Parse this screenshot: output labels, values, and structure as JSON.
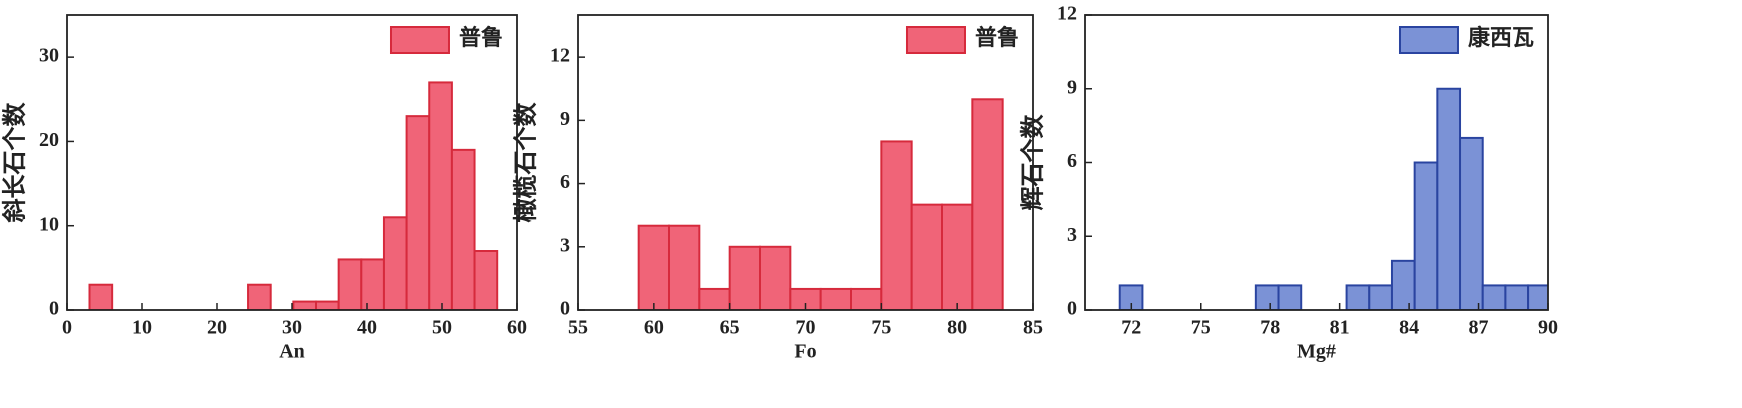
{
  "chart_data": [
    {
      "type": "histogram",
      "xlabel": "An",
      "ylabel": "斜长石个数",
      "legend": "upper right",
      "series_name": "普鲁",
      "color": "#f06478",
      "edgecolor": "#d62a3c",
      "bins": [
        3.0,
        6.02,
        9.04,
        12.06,
        15.08,
        18.1,
        21.12,
        24.14,
        27.16,
        30.18,
        33.2,
        36.22,
        39.24,
        42.26,
        45.28,
        48.3,
        51.32,
        54.34,
        57.36
      ],
      "counts": [
        3,
        0,
        0,
        0,
        0,
        0,
        0,
        3,
        0,
        1,
        1,
        6,
        6,
        11,
        23,
        27,
        19,
        7
      ],
      "xlim": [
        0,
        60
      ],
      "xticks": [
        0,
        10,
        20,
        30,
        40,
        50,
        60
      ],
      "ylim": [
        0,
        35
      ],
      "yticks": [
        0,
        10,
        20,
        30
      ]
    },
    {
      "type": "histogram",
      "xlabel": "Fo",
      "ylabel": "橄榄石个数",
      "legend": "upper right",
      "series_name": "普鲁",
      "color": "#f06478",
      "edgecolor": "#d62a3c",
      "bins": [
        59,
        61,
        63,
        65,
        67,
        69,
        71,
        73,
        75,
        77,
        79,
        81,
        83
      ],
      "counts": [
        4,
        4,
        1,
        3,
        3,
        1,
        1,
        1,
        8,
        5,
        5,
        10
      ],
      "xlim": [
        55,
        85
      ],
      "xticks": [
        55,
        60,
        65,
        70,
        75,
        80,
        85
      ],
      "ylim": [
        0,
        14
      ],
      "yticks": [
        0,
        3,
        6,
        9,
        12
      ]
    },
    {
      "type": "histogram",
      "xlabel": "Mg#",
      "ylabel": "辉石个数",
      "legend": "upper right",
      "series_name": "康西瓦",
      "color": "#7b92d6",
      "edgecolor": "#2a44a0",
      "bins": [
        71.5,
        72.48,
        73.46,
        74.44,
        75.42,
        76.4,
        77.38,
        78.36,
        79.34,
        80.32,
        81.3,
        82.28,
        83.26,
        84.24,
        85.22,
        86.2,
        87.18,
        88.16,
        89.14,
        90.12
      ],
      "counts": [
        1,
        0,
        0,
        0,
        0,
        0,
        1,
        1,
        0,
        0,
        1,
        1,
        2,
        6,
        9,
        7,
        1,
        1,
        1
      ],
      "xlim": [
        70,
        90
      ],
      "xticks": [
        72,
        75,
        78,
        81,
        84,
        87,
        90
      ],
      "ylim": [
        0,
        12
      ],
      "yticks": [
        0,
        3,
        6,
        9,
        12
      ]
    }
  ]
}
